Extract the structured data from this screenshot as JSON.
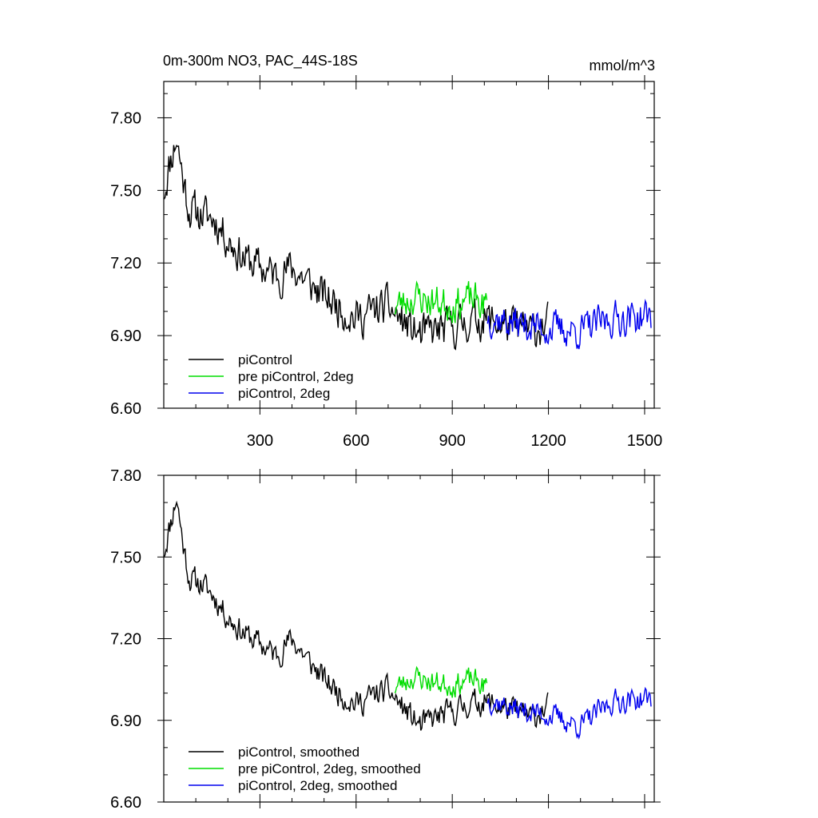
{
  "chart_data": [
    {
      "type": "line",
      "title_left": "0m-300m NO3, PAC_44S-18S",
      "title_right": "mmol/m^3",
      "xlim": [
        0,
        1530
      ],
      "ylim": [
        6.6,
        7.95
      ],
      "x_ticks": [
        300,
        600,
        900,
        1200,
        1500
      ],
      "x_tick_labels": [
        "300",
        "600",
        "900",
        "1200",
        "1500"
      ],
      "y_ticks": [
        6.6,
        6.9,
        7.2,
        7.5,
        7.8
      ],
      "y_tick_labels": [
        "6.60",
        "6.90",
        "7.20",
        "7.50",
        "7.80"
      ],
      "grid": false,
      "legend": "bottom-left",
      "series": [
        {
          "name": "piControl",
          "color": "#000000",
          "x_start": 1,
          "x_end": 1200,
          "anchors": [
            [
              1,
              7.5
            ],
            [
              20,
              7.62
            ],
            [
              40,
              7.72
            ],
            [
              60,
              7.55
            ],
            [
              80,
              7.42
            ],
            [
              120,
              7.4
            ],
            [
              160,
              7.38
            ],
            [
              200,
              7.3
            ],
            [
              250,
              7.22
            ],
            [
              300,
              7.18
            ],
            [
              350,
              7.15
            ],
            [
              400,
              7.18
            ],
            [
              450,
              7.12
            ],
            [
              500,
              7.06
            ],
            [
              550,
              7.02
            ],
            [
              600,
              6.97
            ],
            [
              650,
              7.0
            ],
            [
              700,
              7.02
            ],
            [
              750,
              6.95
            ],
            [
              800,
              6.9
            ],
            [
              850,
              6.92
            ],
            [
              900,
              6.93
            ],
            [
              950,
              6.96
            ],
            [
              1000,
              6.97
            ],
            [
              1050,
              6.95
            ],
            [
              1100,
              6.93
            ],
            [
              1150,
              6.92
            ],
            [
              1200,
              6.95
            ]
          ],
          "noise": 0.085,
          "seed": 11
        },
        {
          "name": "pre piControl, 2deg",
          "color": "#00dd00",
          "x_start": 720,
          "x_end": 1010,
          "anchors": [
            [
              720,
              7.02
            ],
            [
              780,
              7.06
            ],
            [
              840,
              7.04
            ],
            [
              900,
              7.03
            ],
            [
              960,
              7.05
            ],
            [
              1010,
              7.02
            ]
          ],
          "noise": 0.075,
          "seed": 23
        },
        {
          "name": "piControl, 2deg",
          "color": "#0000ee",
          "x_start": 1010,
          "x_end": 1520,
          "anchors": [
            [
              1010,
              6.98
            ],
            [
              1100,
              6.95
            ],
            [
              1200,
              6.93
            ],
            [
              1300,
              6.92
            ],
            [
              1400,
              6.97
            ],
            [
              1520,
              6.98
            ]
          ],
          "noise": 0.075,
          "seed": 37
        }
      ]
    },
    {
      "type": "line",
      "xlim": [
        0,
        1530
      ],
      "ylim": [
        6.6,
        7.8
      ],
      "x_ticks": [
        300,
        600,
        900,
        1200,
        1500
      ],
      "y_ticks": [
        6.6,
        6.9,
        7.2,
        7.5,
        7.8
      ],
      "y_tick_labels": [
        "6.60",
        "6.90",
        "7.20",
        "7.50",
        "7.80"
      ],
      "grid": false,
      "legend": "bottom-left",
      "series": [
        {
          "name": "piControl, smoothed",
          "color": "#000000",
          "x_start": 1,
          "x_end": 1200,
          "anchors": [
            [
              1,
              7.52
            ],
            [
              20,
              7.62
            ],
            [
              40,
              7.72
            ],
            [
              60,
              7.55
            ],
            [
              80,
              7.42
            ],
            [
              120,
              7.4
            ],
            [
              160,
              7.35
            ],
            [
              200,
              7.28
            ],
            [
              250,
              7.22
            ],
            [
              300,
              7.18
            ],
            [
              350,
              7.14
            ],
            [
              400,
              7.2
            ],
            [
              450,
              7.12
            ],
            [
              500,
              7.05
            ],
            [
              550,
              7.0
            ],
            [
              600,
              6.96
            ],
            [
              650,
              6.99
            ],
            [
              700,
              7.01
            ],
            [
              750,
              6.94
            ],
            [
              800,
              6.88
            ],
            [
              850,
              6.91
            ],
            [
              900,
              6.93
            ],
            [
              950,
              6.96
            ],
            [
              1000,
              6.97
            ],
            [
              1050,
              6.95
            ],
            [
              1100,
              6.93
            ],
            [
              1150,
              6.91
            ],
            [
              1200,
              6.95
            ]
          ],
          "noise": 0.05,
          "seed": 11
        },
        {
          "name": "pre piControl, 2deg, smoothed",
          "color": "#00dd00",
          "x_start": 720,
          "x_end": 1010,
          "anchors": [
            [
              720,
              7.02
            ],
            [
              780,
              7.06
            ],
            [
              840,
              7.04
            ],
            [
              900,
              7.03
            ],
            [
              960,
              7.05
            ],
            [
              1010,
              7.02
            ]
          ],
          "noise": 0.045,
          "seed": 23
        },
        {
          "name": "piControl, 2deg, smoothed",
          "color": "#0000ee",
          "x_start": 1010,
          "x_end": 1520,
          "anchors": [
            [
              1010,
              6.98
            ],
            [
              1100,
              6.94
            ],
            [
              1200,
              6.92
            ],
            [
              1300,
              6.88
            ],
            [
              1400,
              6.97
            ],
            [
              1520,
              6.98
            ]
          ],
          "noise": 0.045,
          "seed": 37
        }
      ]
    }
  ]
}
